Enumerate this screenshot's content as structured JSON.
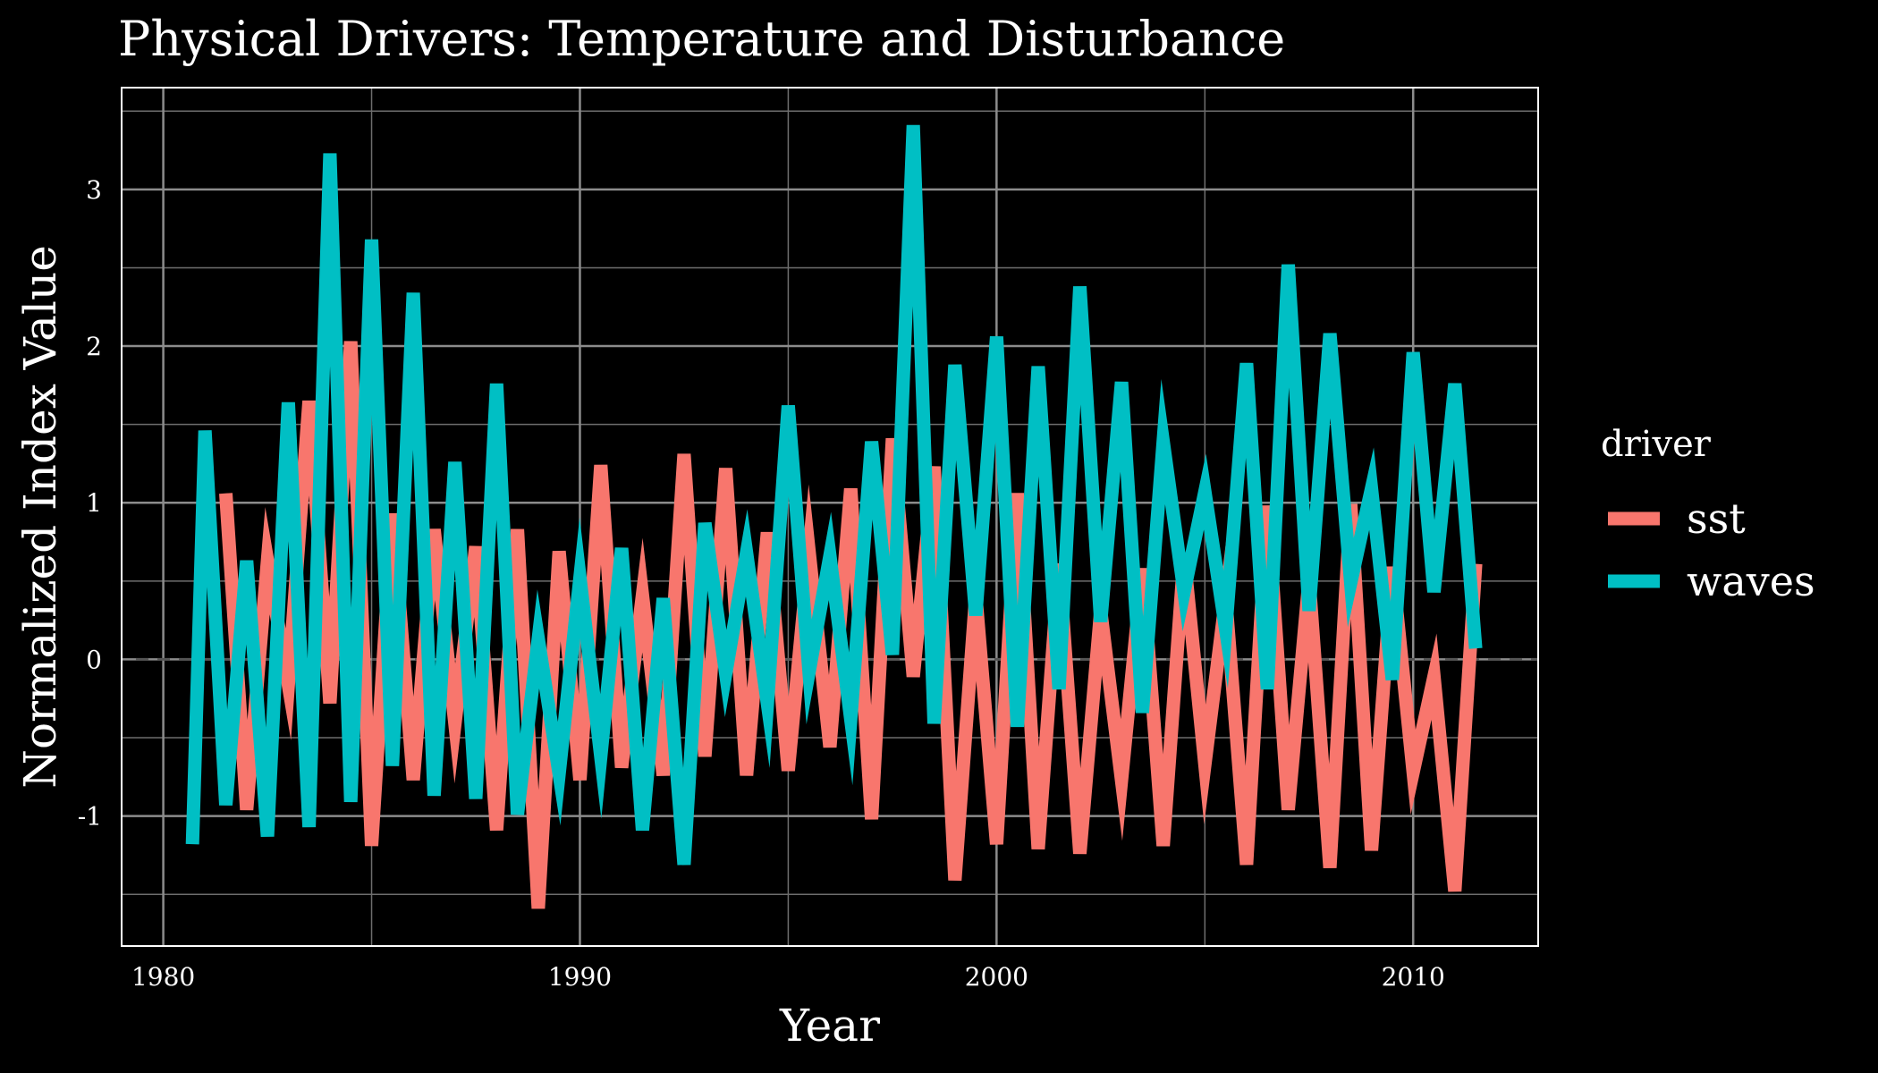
{
  "chart_data": {
    "type": "line",
    "title": "Physical Drivers: Temperature and Disturbance",
    "xlabel": "Year",
    "ylabel": "Normalized Index Value",
    "xlim": [
      1979,
      2013
    ],
    "ylim": [
      -1.83,
      3.65
    ],
    "x_ticks": [
      1980,
      1990,
      2000,
      2010
    ],
    "x_tick_labels": [
      "1980",
      "1990",
      "2000",
      "2010"
    ],
    "y_ticks": [
      -1,
      0,
      1,
      2,
      3
    ],
    "y_tick_labels": [
      "-1",
      "0",
      "1",
      "2",
      "3"
    ],
    "grid": true,
    "reference_line": {
      "y": 0,
      "style": "dashed",
      "color": "#555555"
    },
    "legend": {
      "title": "driver",
      "position": "right"
    },
    "series": [
      {
        "name": "sst",
        "color": "#F8766D",
        "x": [
          1981.5,
          1982.0,
          1982.5,
          1983.0,
          1983.5,
          1984.0,
          1984.5,
          1985.0,
          1985.5,
          1986.0,
          1986.5,
          1987.0,
          1987.5,
          1988.0,
          1988.5,
          1989.0,
          1989.5,
          1990.0,
          1990.5,
          1991.0,
          1991.5,
          1992.0,
          1992.5,
          1993.0,
          1993.5,
          1994.0,
          1994.5,
          1995.0,
          1995.5,
          1996.0,
          1996.5,
          1997.0,
          1997.5,
          1998.0,
          1998.5,
          1999.0,
          1999.5,
          2000.0,
          2000.5,
          2001.0,
          2001.5,
          2002.0,
          2002.5,
          2003.0,
          2003.5,
          2004.0,
          2004.5,
          2005.0,
          2005.5,
          2006.0,
          2006.5,
          2007.0,
          2007.5,
          2008.0,
          2008.5,
          2009.0,
          2009.5,
          2010.0,
          2010.5,
          2011.0,
          2011.5
        ],
        "y": [
          1.06,
          -0.96,
          0.63,
          -0.16,
          1.65,
          -0.28,
          2.03,
          -1.19,
          0.93,
          -0.77,
          0.83,
          -0.41,
          0.72,
          -1.09,
          0.83,
          -1.59,
          0.69,
          -0.77,
          1.24,
          -0.69,
          0.41,
          -0.74,
          1.31,
          -0.62,
          1.22,
          -0.74,
          0.81,
          -0.71,
          0.69,
          -0.56,
          1.09,
          -1.02,
          1.41,
          -0.11,
          1.23,
          -1.41,
          0.41,
          -1.18,
          1.06,
          -1.21,
          0.61,
          -1.24,
          0.31,
          -0.77,
          0.58,
          -1.19,
          0.66,
          -0.67,
          0.39,
          -1.31,
          0.98,
          -0.96,
          0.51,
          -1.33,
          0.99,
          -1.22,
          0.59,
          -0.72,
          -0.11,
          -1.48,
          0.61
        ]
      },
      {
        "name": "waves",
        "color": "#00BFC4",
        "x": [
          1980.7,
          1981.0,
          1981.5,
          1982.0,
          1982.5,
          1983.0,
          1983.5,
          1984.0,
          1984.5,
          1985.0,
          1985.5,
          1986.0,
          1986.5,
          1987.0,
          1987.5,
          1988.0,
          1988.5,
          1989.0,
          1989.5,
          1990.0,
          1990.5,
          1991.0,
          1991.5,
          1992.0,
          1992.5,
          1993.0,
          1993.5,
          1994.0,
          1994.5,
          1995.0,
          1995.5,
          1996.0,
          1996.5,
          1997.0,
          1997.5,
          1998.0,
          1998.5,
          1999.0,
          1999.5,
          2000.0,
          2000.5,
          2001.0,
          2001.5,
          2002.0,
          2002.5,
          2003.0,
          2003.5,
          2004.0,
          2004.5,
          2005.0,
          2005.5,
          2006.0,
          2006.5,
          2007.0,
          2007.5,
          2008.0,
          2008.5,
          2009.0,
          2009.5,
          2010.0,
          2010.5,
          2011.0,
          2011.5
        ],
        "y": [
          -1.18,
          1.46,
          -0.93,
          0.63,
          -1.13,
          1.64,
          -1.07,
          3.23,
          -0.91,
          2.68,
          -0.68,
          2.34,
          -0.87,
          1.26,
          -0.89,
          1.76,
          -0.99,
          0.13,
          -0.73,
          0.52,
          -0.62,
          0.71,
          -1.09,
          0.39,
          -1.31,
          0.87,
          -0.09,
          0.68,
          -0.28,
          1.62,
          -0.08,
          0.66,
          -0.38,
          1.39,
          0.03,
          3.41,
          -0.41,
          1.88,
          0.28,
          2.06,
          -0.43,
          1.87,
          -0.19,
          2.38,
          0.24,
          1.77,
          -0.34,
          1.39,
          0.43,
          1.07,
          0.19,
          1.89,
          -0.19,
          2.52,
          0.31,
          2.08,
          0.49,
          1.09,
          -0.13,
          1.96,
          0.43,
          1.76,
          0.07
        ]
      }
    ]
  }
}
